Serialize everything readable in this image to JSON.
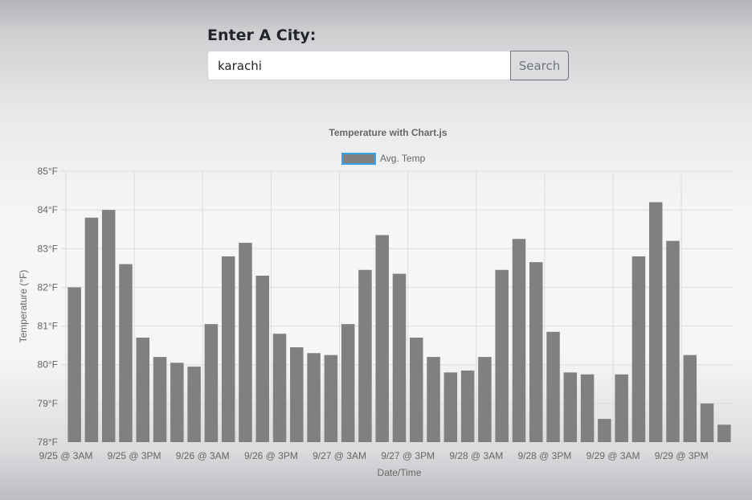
{
  "form": {
    "label": "Enter A City:",
    "input_value": "karachi",
    "search_label": "Search"
  },
  "chart_data": {
    "type": "bar",
    "title": "Temperature with Chart.js",
    "legend": {
      "label": "Avg. Temp",
      "position": "top"
    },
    "xlabel": "Date/Time",
    "ylabel": "Temperature (°F)",
    "ylim": [
      78,
      85
    ],
    "yticks": [
      "85°F",
      "84°F",
      "83°F",
      "82°F",
      "81°F",
      "80°F",
      "79°F",
      "78°F"
    ],
    "xticks": [
      "9/25 @ 3AM",
      "9/25 @ 3PM",
      "9/26 @ 3AM",
      "9/26 @ 3PM",
      "9/27 @ 3AM",
      "9/27 @ 3PM",
      "9/28 @ 3AM",
      "9/28 @ 3PM",
      "9/29 @ 3AM",
      "9/29 @ 3PM"
    ],
    "bar_color": "#808080",
    "legend_border_color": "#36a2eb",
    "grid": true,
    "series": [
      {
        "name": "Avg. Temp",
        "values": [
          82.0,
          83.8,
          84.0,
          82.6,
          80.7,
          80.2,
          80.05,
          79.95,
          81.05,
          82.8,
          83.15,
          82.3,
          80.8,
          80.45,
          80.3,
          80.25,
          81.05,
          82.45,
          83.35,
          82.35,
          80.7,
          80.2,
          79.8,
          79.85,
          80.2,
          82.45,
          83.25,
          82.65,
          80.85,
          79.8,
          79.75,
          78.6,
          79.75,
          82.8,
          84.2,
          83.2,
          80.25,
          79.0,
          78.45
        ]
      }
    ]
  }
}
